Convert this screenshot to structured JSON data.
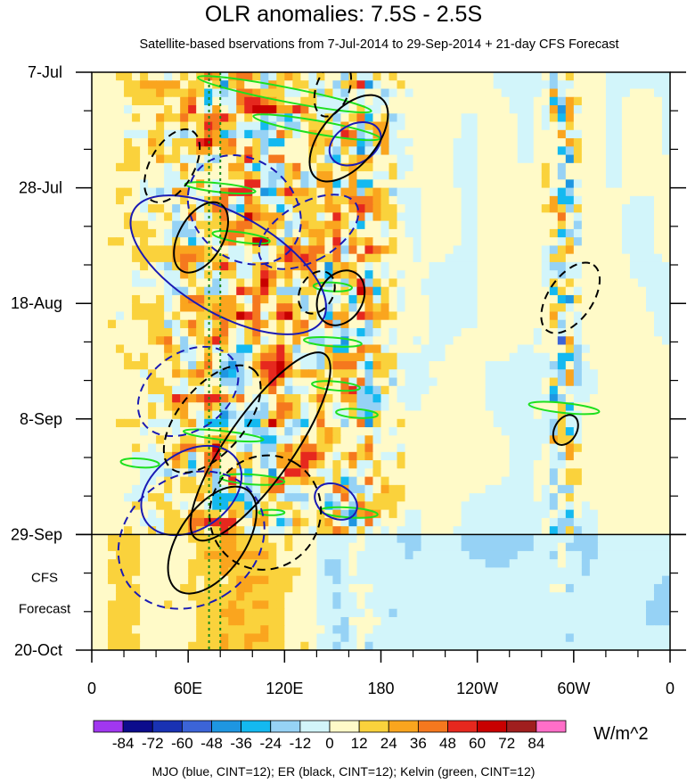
{
  "chart_data": {
    "type": "heatmap",
    "title": "OLR anomalies: 7.5S - 2.5S",
    "subtitle": "Satellite-based bservations from 7-Jul-2014 to 29-Sep-2014 + 21-day CFS Forecast",
    "x_ticks": [
      "0",
      "60E",
      "120E",
      "180",
      "120W",
      "60W",
      "0"
    ],
    "x_tick_lon": [
      0,
      60,
      120,
      180,
      240,
      300,
      360
    ],
    "y_ticks": [
      "7-Jul",
      "28-Jul",
      "18-Aug",
      "8-Sep",
      "29-Sep",
      "20-Oct"
    ],
    "y_tick_day": [
      0,
      21,
      42,
      63,
      84,
      105
    ],
    "xlim": [
      0,
      360
    ],
    "ylim_days": [
      0,
      105
    ],
    "forecast_start_day": 84,
    "forecast_label": [
      "CFS",
      "Forecast"
    ],
    "colorbar": {
      "labels": [
        "-84",
        "-72",
        "-60",
        "-48",
        "-36",
        "-24",
        "-12",
        "0",
        "12",
        "24",
        "36",
        "48",
        "60",
        "72",
        "84"
      ],
      "colors": [
        "#a137f0",
        "#0c0c8c",
        "#1932b3",
        "#3c64d7",
        "#1e96e1",
        "#14b9f0",
        "#96d2f5",
        "#d2f5fa",
        "#fffac8",
        "#fad23c",
        "#faa51e",
        "#f5781e",
        "#e6281e",
        "#c80000",
        "#a01e1e",
        "#ff6ec8"
      ],
      "units": "W/m^2"
    },
    "footnote": "MJO (blue, CINT=12); ER (black, CINT=12); Kelvin (green, CINT=12)",
    "contour_colors": {
      "mjo": "#1a1ab4",
      "er": "#000000",
      "kelvin": "#1ee01e",
      "reference": "#1a8a1a"
    },
    "reference_lines_lon": [
      73,
      80
    ]
  }
}
